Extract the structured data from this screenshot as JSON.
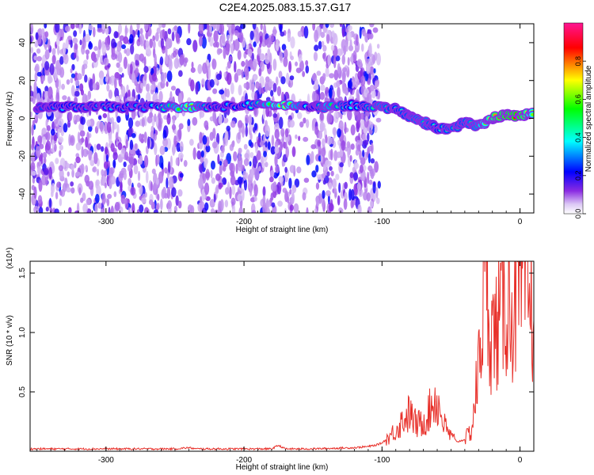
{
  "title": "C2E4.2025.083.15.37.G17",
  "chart_data": [
    {
      "type": "heatmap",
      "xlabel": "Height of straight line (km)",
      "ylabel": "Frequency (Hz)",
      "xlim": [
        -355,
        10
      ],
      "ylim": [
        -50,
        50
      ],
      "xticks": [
        -300,
        -200,
        -100,
        0
      ],
      "yticks": [
        -40,
        -20,
        0,
        20,
        40
      ],
      "colorbar": {
        "label": "Normalized spectral amplitude",
        "range": [
          0,
          1
        ],
        "ticks": [
          "0.0",
          "0.2",
          "0.4",
          "0.6",
          "0.8"
        ],
        "tick_values": [
          0.0,
          0.2,
          0.4,
          0.6,
          0.8
        ],
        "colors": [
          "#ffffff",
          "#dcc8f5",
          "#8a2be2",
          "#0000ff",
          "#00ffff",
          "#00ff00",
          "#ffff00",
          "#ff0000",
          "#ff1493"
        ]
      },
      "noise_band": {
        "x_range": [
          -355,
          -102
        ],
        "amplitude": 0.15
      },
      "signal_track": [
        {
          "x": -350,
          "y": 6,
          "a": 0.25
        },
        {
          "x": -330,
          "y": 6,
          "a": 0.35
        },
        {
          "x": -310,
          "y": 6,
          "a": 0.3
        },
        {
          "x": -290,
          "y": 6,
          "a": 0.35
        },
        {
          "x": -270,
          "y": 6,
          "a": 0.3
        },
        {
          "x": -240,
          "y": 6,
          "a": 0.65
        },
        {
          "x": -220,
          "y": 6,
          "a": 0.3
        },
        {
          "x": -195,
          "y": 7,
          "a": 0.4
        },
        {
          "x": -170,
          "y": 7,
          "a": 0.7
        },
        {
          "x": -150,
          "y": 6,
          "a": 0.3
        },
        {
          "x": -140,
          "y": 6,
          "a": 0.55
        },
        {
          "x": -120,
          "y": 7,
          "a": 0.35
        },
        {
          "x": -100,
          "y": 6,
          "a": 0.5
        },
        {
          "x": -90,
          "y": 5,
          "a": 0.4
        },
        {
          "x": -80,
          "y": 1,
          "a": 0.45
        },
        {
          "x": -70,
          "y": -2,
          "a": 0.5
        },
        {
          "x": -60,
          "y": -5,
          "a": 0.4
        },
        {
          "x": -50,
          "y": -6,
          "a": 0.45
        },
        {
          "x": -40,
          "y": -2,
          "a": 0.45
        },
        {
          "x": -30,
          "y": -4,
          "a": 0.5
        },
        {
          "x": -20,
          "y": 0,
          "a": 0.75
        },
        {
          "x": -10,
          "y": 2,
          "a": 0.85
        },
        {
          "x": 0,
          "y": 1,
          "a": 0.9
        },
        {
          "x": 10,
          "y": 3,
          "a": 0.6
        }
      ]
    },
    {
      "type": "line",
      "xlabel": "Height of straight line (km)",
      "ylabel": "SNR (10 * v/v)",
      "exponent_label": "(x10⁴)",
      "xlim": [
        -355,
        10
      ],
      "ylim": [
        0,
        1.6
      ],
      "xticks": [
        -300,
        -200,
        -100,
        0
      ],
      "yticks": [
        0.5,
        1.0,
        1.5
      ],
      "ytick_labels": [
        "0.5",
        "1.0",
        "1.5"
      ],
      "series": [
        {
          "color": "#e8302a",
          "x": [
            -355,
            -300,
            -250,
            -240,
            -235,
            -200,
            -180,
            -175,
            -170,
            -150,
            -120,
            -110,
            -105,
            -100,
            -95,
            -90,
            -85,
            -80,
            -75,
            -70,
            -65,
            -62,
            -58,
            -55,
            -50,
            -45,
            -40,
            -35,
            -30,
            -27,
            -25,
            -22,
            -20,
            -15,
            -10,
            -5,
            0,
            5,
            10
          ],
          "y": [
            0.02,
            0.02,
            0.02,
            0.03,
            0.02,
            0.02,
            0.02,
            0.05,
            0.02,
            0.02,
            0.03,
            0.04,
            0.05,
            0.07,
            0.12,
            0.18,
            0.26,
            0.32,
            0.22,
            0.25,
            0.35,
            0.45,
            0.35,
            0.22,
            0.12,
            0.08,
            0.1,
            0.18,
            0.7,
            1.25,
            1.6,
            1.15,
            0.95,
            1.1,
            1.3,
            1.2,
            1.35,
            1.38,
            1.1
          ],
          "noisy": true
        }
      ]
    }
  ]
}
